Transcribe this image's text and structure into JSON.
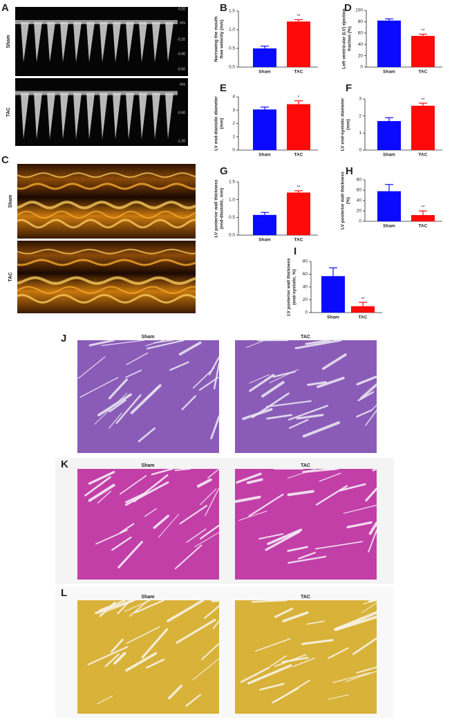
{
  "chart_data": [
    {
      "type": "bar",
      "label": "B",
      "ylabel": [
        "Narrowing the mouth",
        "flow velocity (m/s)"
      ],
      "categories": [
        "Sham",
        "TAC"
      ],
      "values": [
        0.5,
        1.22
      ],
      "errors": [
        0.06,
        0.05
      ],
      "colors": [
        "#0a0aff",
        "#ff0a0a"
      ],
      "annotation": "**",
      "ylim": [
        0,
        1.5
      ],
      "yticks": [
        {
          "value": 0,
          "label": "0.0"
        },
        {
          "value": 0.5,
          "label": "0.5"
        },
        {
          "value": 1,
          "label": "1.0"
        },
        {
          "value": 1.5,
          "label": "1.5"
        }
      ]
    },
    {
      "type": "bar",
      "label": "D",
      "ylabel": [
        "Left ventricular (LV) ejection",
        "fraction (%)"
      ],
      "categories": [
        "Sham",
        "TAC"
      ],
      "values": [
        82,
        55
      ],
      "errors": [
        3,
        3
      ],
      "colors": [
        "#0a0aff",
        "#ff0a0a"
      ],
      "annotation": "**",
      "ylim": [
        0,
        100
      ],
      "yticks": [
        0,
        20,
        40,
        60,
        80,
        100
      ]
    },
    {
      "type": "bar",
      "label": "E",
      "ylabel": [
        "LV end-diastolic diameter",
        "(mm)"
      ],
      "categories": [
        "Sham",
        "TAC"
      ],
      "values": [
        3.05,
        3.45
      ],
      "errors": [
        0.18,
        0.25
      ],
      "colors": [
        "#0a0aff",
        "#ff0a0a"
      ],
      "annotation": "*",
      "ylim": [
        0,
        4
      ],
      "yticks": [
        0,
        1,
        2,
        3,
        4
      ]
    },
    {
      "type": "bar",
      "label": "F",
      "ylabel": [
        "LV end-systolic diameter",
        "(mm)"
      ],
      "categories": [
        "Sham",
        "TAC"
      ],
      "values": [
        1.7,
        2.6
      ],
      "errors": [
        0.2,
        0.15
      ],
      "colors": [
        "#0a0aff",
        "#ff0a0a"
      ],
      "annotation": "**",
      "ylim": [
        0,
        3
      ],
      "yticks": [
        0,
        1,
        2,
        3
      ]
    },
    {
      "type": "bar",
      "label": "G",
      "ylabel": [
        "LV posterior wall thickness",
        "(end-diastolic, mm)"
      ],
      "categories": [
        "Sham",
        "TAC"
      ],
      "values": [
        0.57,
        1.2
      ],
      "errors": [
        0.07,
        0.05
      ],
      "colors": [
        "#0a0aff",
        "#ff0a0a"
      ],
      "annotation": "**",
      "ylim": [
        0,
        1.5
      ],
      "yticks": [
        {
          "value": 0,
          "label": "0.0"
        },
        {
          "value": 0.5,
          "label": "0.5"
        },
        {
          "value": 1,
          "label": "1.0"
        },
        {
          "value": 1.5,
          "label": "1.5"
        }
      ]
    },
    {
      "type": "bar",
      "label": "H",
      "ylabel": [
        "LV posterior wall thickness",
        "(%)"
      ],
      "categories": [
        "Sham",
        "TAC"
      ],
      "values": [
        58,
        12
      ],
      "errors": [
        13,
        8
      ],
      "colors": [
        "#0a0aff",
        "#ff0a0a"
      ],
      "annotation": "**",
      "ylim": [
        0,
        80
      ],
      "yticks": [
        0,
        20,
        40,
        60,
        80
      ]
    },
    {
      "type": "bar",
      "label": "I",
      "ylabel": [
        "LV posterior wall thickness",
        "(end-systolic, %)"
      ],
      "categories": [
        "Sham",
        "TAC"
      ],
      "values": [
        57,
        10
      ],
      "errors": [
        13,
        6
      ],
      "colors": [
        "#0a0aff",
        "#ff0a0a"
      ],
      "annotation": "**",
      "ylim": [
        0,
        80
      ],
      "yticks": [
        0,
        20,
        40,
        60,
        80
      ]
    }
  ],
  "panels": {
    "A": {
      "label": "A",
      "rows": [
        {
          "name": "Sham",
          "scale": [
            "0.20",
            "m/s",
            "-0.20",
            "-0.40",
            "-0.60"
          ]
        },
        {
          "name": "TAC",
          "scale": [
            "m/s",
            "-0.60",
            "-1.20"
          ]
        }
      ]
    },
    "C": {
      "label": "C",
      "rows": [
        "Sham",
        "TAC"
      ]
    },
    "J": {
      "label": "J",
      "columns": [
        "Sham",
        "TAC"
      ]
    },
    "K": {
      "label": "K",
      "columns": [
        "Sham",
        "TAC"
      ]
    },
    "L": {
      "label": "L",
      "columns": [
        "Sham",
        "TAC"
      ]
    }
  }
}
